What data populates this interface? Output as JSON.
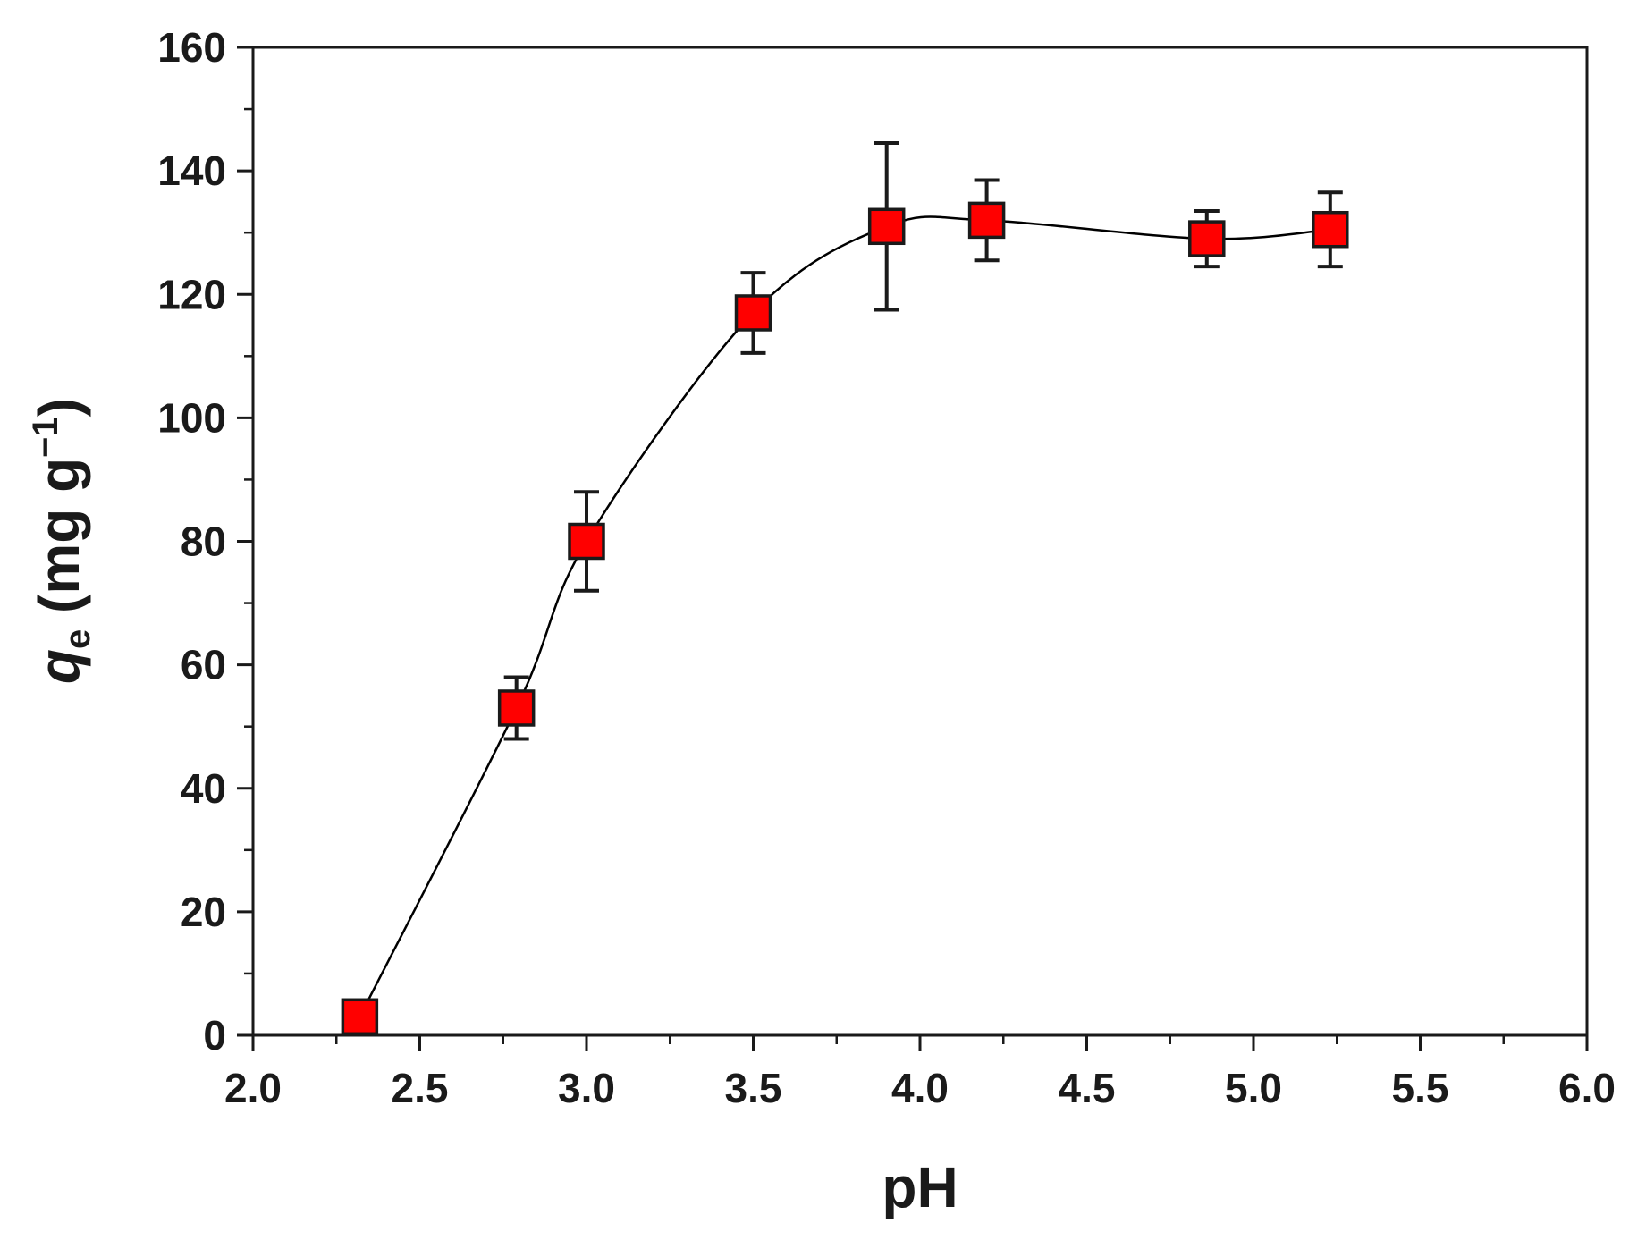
{
  "chart_data": {
    "type": "scatter",
    "xlabel": "pH",
    "ylabel": {
      "symbol": "q",
      "subscript": "e",
      "unit_open": " (mg g",
      "superscript": "−1",
      "unit_close": ")"
    },
    "xlim": [
      2.0,
      6.0
    ],
    "ylim": [
      0,
      160
    ],
    "x_ticks": [
      "2.0",
      "2.5",
      "3.0",
      "3.5",
      "4.0",
      "4.5",
      "5.0",
      "5.5",
      "6.0"
    ],
    "y_ticks": [
      "0",
      "20",
      "40",
      "60",
      "80",
      "100",
      "120",
      "140",
      "160"
    ],
    "grid": false,
    "legend": false,
    "marker_color": "#ff0000",
    "line_color": "#000000",
    "smooth_line": true,
    "series": [
      {
        "x": [
          2.32,
          2.79,
          3.0,
          3.5,
          3.9,
          4.2,
          4.86,
          5.23
        ],
        "y": [
          3,
          53,
          80,
          117,
          131,
          132,
          129,
          130.5
        ],
        "error": [
          0,
          5,
          8,
          6.5,
          13.5,
          6.5,
          4.5,
          6
        ]
      }
    ]
  }
}
